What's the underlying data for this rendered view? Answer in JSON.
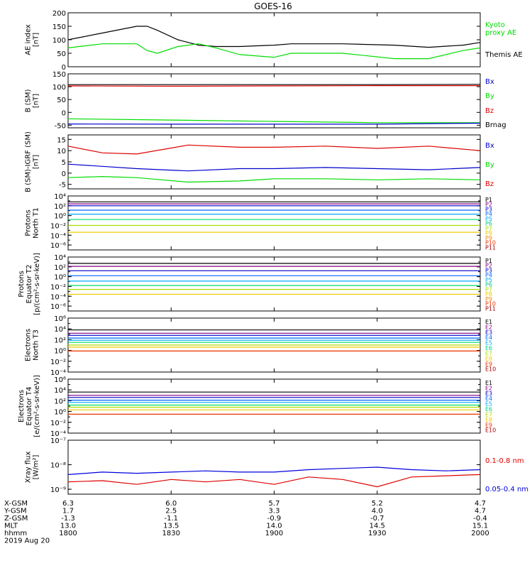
{
  "title": "GOES-16",
  "footer": {
    "rows": [
      {
        "label": "X-GSM",
        "values": [
          "6.3",
          "6.0",
          "5.7",
          "5.2",
          "4.7"
        ]
      },
      {
        "label": "Y-GSM",
        "values": [
          "1.7",
          "2.5",
          "3.3",
          "4.0",
          "4.7"
        ]
      },
      {
        "label": "Z-GSM",
        "values": [
          "-1.3",
          "-1.1",
          "-0.9",
          "-0.7",
          "-0.4"
        ]
      },
      {
        "label": "MLT",
        "values": [
          "13.0",
          "13.5",
          "14.0",
          "14.5",
          "15.1"
        ]
      },
      {
        "label": "hhmm",
        "values": [
          "1800",
          "1830",
          "1900",
          "1930",
          "2000"
        ]
      }
    ],
    "date": "2019 Aug 20"
  },
  "chart_data": [
    {
      "id": "ae",
      "type": "line",
      "ylabel": [
        "AE index",
        "[nT]"
      ],
      "scale": "linear",
      "ylim": [
        0,
        200
      ],
      "ticks": [
        {
          "v": 0,
          "l": "0"
        },
        {
          "v": 50,
          "l": "50"
        },
        {
          "v": 100,
          "l": "100"
        },
        {
          "v": 150,
          "l": "150"
        },
        {
          "v": 200,
          "l": "200"
        }
      ],
      "x": [
        1800,
        1810,
        1820,
        1823,
        1826,
        1832,
        1838,
        1843,
        1850,
        1900,
        1905,
        1920,
        1935,
        1945,
        1955,
        2000
      ],
      "series": [
        {
          "name": "Themis AE",
          "color": "#000000",
          "y": [
            100,
            125,
            150,
            150,
            135,
            100,
            80,
            75,
            75,
            80,
            85,
            85,
            80,
            72,
            80,
            90
          ]
        },
        {
          "name": "Kyoto proxy AE",
          "color": "#00dd00",
          "y": [
            70,
            85,
            85,
            60,
            50,
            75,
            85,
            70,
            45,
            35,
            50,
            50,
            30,
            30,
            60,
            70
          ]
        }
      ],
      "legend": [
        {
          "text": "Kyoto",
          "color": "#00dd00"
        },
        {
          "text": "proxy AE",
          "color": "#00dd00"
        },
        {
          "text": "Themis AE",
          "color": "#000000"
        }
      ]
    },
    {
      "id": "bsm",
      "type": "line",
      "ylabel": [
        "B (SM)",
        "[nT]"
      ],
      "scale": "linear",
      "ylim": [
        -60,
        150
      ],
      "ticks": [
        {
          "v": -50,
          "l": "-50"
        },
        {
          "v": 0,
          "l": "0"
        },
        {
          "v": 50,
          "l": "50"
        },
        {
          "v": 100,
          "l": "100"
        },
        {
          "v": 150,
          "l": "150"
        }
      ],
      "x": [
        1800,
        1830,
        1900,
        1930,
        2000
      ],
      "series": [
        {
          "name": "Brnag",
          "color": "#000000",
          "y": [
            108,
            108,
            108,
            108,
            109
          ]
        },
        {
          "name": "Bz",
          "color": "#dd0000",
          "y": [
            103,
            102,
            103,
            104,
            104
          ]
        },
        {
          "name": "By",
          "color": "#00dd00",
          "y": [
            -25,
            -30,
            -35,
            -40,
            -40
          ]
        },
        {
          "name": "Bx",
          "color": "#0000cc",
          "y": [
            -45,
            -46,
            -46,
            -46,
            -42
          ]
        }
      ],
      "legend": [
        {
          "text": "Bx",
          "color": "#0000cc"
        },
        {
          "text": "By",
          "color": "#00dd00"
        },
        {
          "text": "Bz",
          "color": "#dd0000"
        },
        {
          "text": "Brnag",
          "color": "#000000"
        }
      ]
    },
    {
      "id": "bigrf",
      "type": "line",
      "ylabel": [
        "B (SM)-IGRF (SM)",
        "[nT]"
      ],
      "scale": "linear",
      "ylim": [
        -7,
        17
      ],
      "ticks": [
        {
          "v": -5,
          "l": "-5"
        },
        {
          "v": 0,
          "l": "0"
        },
        {
          "v": 5,
          "l": "5"
        },
        {
          "v": 10,
          "l": "10"
        },
        {
          "v": 15,
          "l": "15"
        }
      ],
      "x": [
        1800,
        1810,
        1820,
        1835,
        1850,
        1900,
        1915,
        1930,
        1945,
        2000
      ],
      "series": [
        {
          "name": "Bz",
          "color": "#dd0000",
          "y": [
            12,
            9,
            8.5,
            12.5,
            11.5,
            11.5,
            12,
            11,
            12,
            10
          ]
        },
        {
          "name": "Bx",
          "color": "#0000cc",
          "y": [
            4,
            3,
            2,
            1,
            2,
            2,
            2.5,
            2,
            1.5,
            2.5
          ]
        },
        {
          "name": "By",
          "color": "#00dd00",
          "y": [
            -2,
            -1.5,
            -2,
            -4,
            -3.5,
            -2.5,
            -2.5,
            -3,
            -2.5,
            -3
          ]
        }
      ],
      "legend": [
        {
          "text": "Bx",
          "color": "#0000cc"
        },
        {
          "text": "By",
          "color": "#00dd00"
        },
        {
          "text": "Bz",
          "color": "#dd0000"
        }
      ]
    },
    {
      "id": "pnorth",
      "type": "line",
      "ylabel": [
        "Protons",
        "North T1"
      ],
      "scale": "log",
      "ylim": [
        -7,
        4
      ],
      "ticks": [
        {
          "v": 4,
          "l": "10⁴"
        },
        {
          "v": 2,
          "l": "10²"
        },
        {
          "v": 0,
          "l": "10⁰"
        },
        {
          "v": -2,
          "l": "10⁻²"
        },
        {
          "v": -4,
          "l": "10⁻⁴"
        },
        {
          "v": -6,
          "l": "10⁻⁶"
        }
      ],
      "x": [
        1800,
        2000
      ],
      "series": [
        {
          "name": "P1",
          "color": "#000000",
          "y": [
            2.8,
            2.8
          ]
        },
        {
          "name": "P2",
          "color": "#800080",
          "y": [
            2.4,
            2.4
          ]
        },
        {
          "name": "P3",
          "color": "#0000cc",
          "y": [
            2.0,
            2.0
          ]
        },
        {
          "name": "P4",
          "color": "#0066ff",
          "y": [
            1.1,
            1.1
          ]
        },
        {
          "name": "P5",
          "color": "#00aaff",
          "y": [
            0.3,
            0.3
          ]
        },
        {
          "name": "P6",
          "color": "#00dd66",
          "y": [
            -0.8,
            -0.8
          ]
        },
        {
          "name": "P7",
          "color": "#aadd00",
          "y": [
            -2.0,
            -2.0
          ]
        },
        {
          "name": "P8",
          "color": "#eecc00",
          "y": [
            -3.4,
            -3.4
          ]
        }
      ],
      "legend": [
        {
          "text": "P1",
          "color": "#000000"
        },
        {
          "text": "P2",
          "color": "#800080"
        },
        {
          "text": "P3",
          "color": "#0000cc"
        },
        {
          "text": "P4",
          "color": "#0066ff"
        },
        {
          "text": "P5",
          "color": "#00aaff"
        },
        {
          "text": "P6",
          "color": "#00cc88"
        },
        {
          "text": "P7",
          "color": "#aadd00"
        },
        {
          "text": "P8",
          "color": "#eecc00"
        },
        {
          "text": "P9",
          "color": "#ee8800"
        },
        {
          "text": "P10",
          "color": "#ee3300"
        },
        {
          "text": "P11",
          "color": "#aa0000"
        }
      ]
    },
    {
      "id": "peq",
      "type": "line",
      "ylabel": [
        "Protons",
        "Equator T2",
        "[p/(cm²-s-sr-keV)]"
      ],
      "scale": "log",
      "ylim": [
        -7,
        4
      ],
      "ticks": [
        {
          "v": 4,
          "l": "10⁴"
        },
        {
          "v": 2,
          "l": "10²"
        },
        {
          "v": 0,
          "l": "10⁰"
        },
        {
          "v": -2,
          "l": "10⁻²"
        },
        {
          "v": -4,
          "l": "10⁻⁴"
        },
        {
          "v": -6,
          "l": "10⁻⁶"
        }
      ],
      "x": [
        1800,
        2000
      ],
      "series": [
        {
          "name": "P1",
          "color": "#000000",
          "y": [
            2.7,
            2.7
          ]
        },
        {
          "name": "P2",
          "color": "#800080",
          "y": [
            2.1,
            2.1
          ]
        },
        {
          "name": "P3",
          "color": "#0000cc",
          "y": [
            1.2,
            1.2
          ]
        },
        {
          "name": "P4",
          "color": "#0066ff",
          "y": [
            0.2,
            0.2
          ]
        },
        {
          "name": "P5",
          "color": "#00aaff",
          "y": [
            -0.9,
            -0.9
          ]
        },
        {
          "name": "P6",
          "color": "#00dd66",
          "y": [
            -1.8,
            -1.8
          ]
        },
        {
          "name": "P7",
          "color": "#aadd00",
          "y": [
            -2.6,
            -2.6
          ]
        },
        {
          "name": "P8",
          "color": "#eecc00",
          "y": [
            -3.6,
            -3.6
          ]
        }
      ],
      "legend": [
        {
          "text": "P1",
          "color": "#000000"
        },
        {
          "text": "P2",
          "color": "#800080"
        },
        {
          "text": "P3",
          "color": "#0000cc"
        },
        {
          "text": "P4",
          "color": "#0066ff"
        },
        {
          "text": "P5",
          "color": "#00aaff"
        },
        {
          "text": "P6",
          "color": "#00cc88"
        },
        {
          "text": "P7",
          "color": "#aadd00"
        },
        {
          "text": "P8",
          "color": "#eecc00"
        },
        {
          "text": "P9",
          "color": "#ee8800"
        },
        {
          "text": "P10",
          "color": "#ee3300"
        },
        {
          "text": "P11",
          "color": "#aa0000"
        }
      ]
    },
    {
      "id": "enorth",
      "type": "line",
      "ylabel": [
        "Electrons",
        "North T3"
      ],
      "scale": "log",
      "ylim": [
        -4,
        6
      ],
      "ticks": [
        {
          "v": 6,
          "l": "10⁶"
        },
        {
          "v": 4,
          "l": "10⁴"
        },
        {
          "v": 2,
          "l": "10²"
        },
        {
          "v": 0,
          "l": "10⁰"
        },
        {
          "v": -2,
          "l": "10⁻²"
        },
        {
          "v": -4,
          "l": "10⁻⁴"
        }
      ],
      "x": [
        1800,
        2000
      ],
      "series": [
        {
          "name": "E1",
          "color": "#000000",
          "y": [
            3.8,
            3.8
          ]
        },
        {
          "name": "E2",
          "color": "#800080",
          "y": [
            3.2,
            3.2
          ]
        },
        {
          "name": "E3",
          "color": "#0000cc",
          "y": [
            2.8,
            2.8
          ]
        },
        {
          "name": "E4",
          "color": "#0066ff",
          "y": [
            2.3,
            2.3
          ]
        },
        {
          "name": "E5",
          "color": "#00aaff",
          "y": [
            1.9,
            1.9
          ]
        },
        {
          "name": "E6",
          "color": "#00dd66",
          "y": [
            1.5,
            1.5
          ]
        },
        {
          "name": "E7",
          "color": "#aadd00",
          "y": [
            1.0,
            1.0
          ]
        },
        {
          "name": "E8",
          "color": "#eecc00",
          "y": [
            0.6,
            0.6
          ]
        },
        {
          "name": "E9",
          "color": "#ee3300",
          "y": [
            -0.1,
            -0.1
          ]
        }
      ],
      "legend": [
        {
          "text": "E1",
          "color": "#000000"
        },
        {
          "text": "E2",
          "color": "#800080"
        },
        {
          "text": "E3",
          "color": "#0000cc"
        },
        {
          "text": "E4",
          "color": "#0066ff"
        },
        {
          "text": "E5",
          "color": "#00aaff"
        },
        {
          "text": "E6",
          "color": "#00cc88"
        },
        {
          "text": "E7",
          "color": "#aadd00"
        },
        {
          "text": "E8",
          "color": "#eecc00"
        },
        {
          "text": "E9",
          "color": "#ee3300"
        },
        {
          "text": "E10",
          "color": "#aa0000"
        }
      ]
    },
    {
      "id": "eeq",
      "type": "line",
      "ylabel": [
        "Electrons",
        "Equator T4",
        "[e/(cm²-s-sr-keV)]"
      ],
      "scale": "log",
      "ylim": [
        -4,
        6
      ],
      "ticks": [
        {
          "v": 6,
          "l": "10⁶"
        },
        {
          "v": 4,
          "l": "10⁴"
        },
        {
          "v": 2,
          "l": "10²"
        },
        {
          "v": 0,
          "l": "10⁰"
        },
        {
          "v": -2,
          "l": "10⁻²"
        },
        {
          "v": -4,
          "l": "10⁻⁴"
        }
      ],
      "x": [
        1800,
        2000
      ],
      "series": [
        {
          "name": "E1",
          "color": "#000000",
          "y": [
            3.6,
            3.6
          ]
        },
        {
          "name": "E2",
          "color": "#800080",
          "y": [
            3.0,
            3.0
          ]
        },
        {
          "name": "E3",
          "color": "#0000cc",
          "y": [
            2.6,
            2.6
          ]
        },
        {
          "name": "E4",
          "color": "#0066ff",
          "y": [
            2.1,
            2.1
          ]
        },
        {
          "name": "E5",
          "color": "#00aaff",
          "y": [
            1.7,
            1.7
          ]
        },
        {
          "name": "E6",
          "color": "#00dd66",
          "y": [
            1.2,
            1.2
          ]
        },
        {
          "name": "E7",
          "color": "#aadd00",
          "y": [
            0.8,
            0.8
          ]
        },
        {
          "name": "E8",
          "color": "#eecc00",
          "y": [
            0.3,
            0.3
          ]
        },
        {
          "name": "E9",
          "color": "#ee3300",
          "y": [
            -0.5,
            -0.5
          ]
        }
      ],
      "legend": [
        {
          "text": "E1",
          "color": "#000000"
        },
        {
          "text": "E2",
          "color": "#800080"
        },
        {
          "text": "E3",
          "color": "#0000cc"
        },
        {
          "text": "E4",
          "color": "#0066ff"
        },
        {
          "text": "E5",
          "color": "#00aaff"
        },
        {
          "text": "E6",
          "color": "#00cc88"
        },
        {
          "text": "E7",
          "color": "#aadd00"
        },
        {
          "text": "E8",
          "color": "#eecc00"
        },
        {
          "text": "E9",
          "color": "#ee3300"
        },
        {
          "text": "E10",
          "color": "#aa0000"
        }
      ]
    },
    {
      "id": "xray",
      "type": "line",
      "ylabel": [
        "Xray flux",
        "[W/m²]"
      ],
      "scale": "log",
      "ylim": [
        -9.2,
        -7
      ],
      "ticks": [
        {
          "v": -7,
          "l": "10⁻⁷"
        },
        {
          "v": -8,
          "l": "10⁻⁸"
        },
        {
          "v": -9,
          "l": "10⁻⁹"
        }
      ],
      "x": [
        1800,
        1810,
        1820,
        1830,
        1840,
        1850,
        1900,
        1910,
        1920,
        1930,
        1940,
        1950,
        2000
      ],
      "series": [
        {
          "name": "0.05-0.4 nm",
          "color": "#0000dd",
          "y": [
            -8.4,
            -8.3,
            -8.35,
            -8.3,
            -8.25,
            -8.3,
            -8.3,
            -8.2,
            -8.15,
            -8.1,
            -8.2,
            -8.25,
            -8.2
          ]
        },
        {
          "name": "0.1-0.8 nm",
          "color": "#dd0000",
          "y": [
            -8.7,
            -8.65,
            -8.8,
            -8.6,
            -8.7,
            -8.6,
            -8.8,
            -8.5,
            -8.6,
            -8.9,
            -8.5,
            -8.45,
            -8.4
          ]
        }
      ],
      "legend": [
        {
          "text": "0.1-0.8 nm",
          "color": "#dd0000"
        },
        {
          "text": "0.05-0.4 nm",
          "color": "#0000dd"
        }
      ]
    }
  ]
}
